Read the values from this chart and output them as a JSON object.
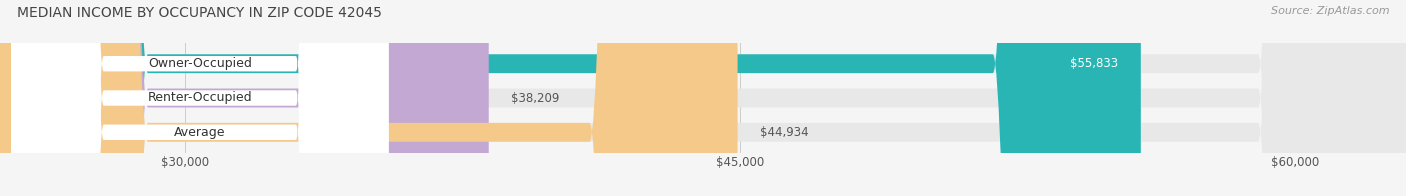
{
  "title": "MEDIAN INCOME BY OCCUPANCY IN ZIP CODE 42045",
  "source": "Source: ZipAtlas.com",
  "categories": [
    "Owner-Occupied",
    "Renter-Occupied",
    "Average"
  ],
  "values": [
    55833,
    38209,
    44934
  ],
  "bar_colors": [
    "#2ab5b5",
    "#c4a8d4",
    "#f5c98a"
  ],
  "value_labels": [
    "$55,833",
    "$38,209",
    "$44,934"
  ],
  "xlim": [
    25000,
    63000
  ],
  "xticks": [
    30000,
    45000,
    60000
  ],
  "xtick_labels": [
    "$30,000",
    "$45,000",
    "$60,000"
  ],
  "bar_height": 0.55,
  "background_color": "#f5f5f5",
  "bar_bg_color": "#e8e8e8",
  "title_fontsize": 10,
  "label_fontsize": 9,
  "value_fontsize": 8.5,
  "source_fontsize": 8
}
